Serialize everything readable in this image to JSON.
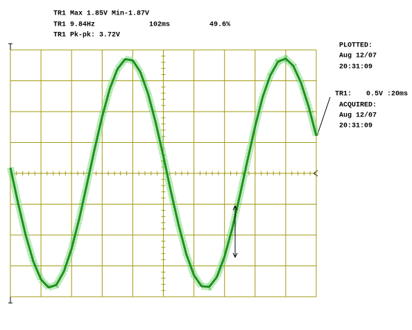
{
  "readouts": {
    "max_min": "TR1 Max 1.85V Min-1.87V",
    "freq": "TR1 9.84Hz",
    "period": "102ms",
    "duty": "49.6%",
    "pkpk": "TR1 Pk-pk: 3.72V"
  },
  "plotted": {
    "label": "PLOTTED:",
    "date": "Aug 12/07",
    "time": "20:31:09"
  },
  "trace": {
    "name": "TR1:",
    "scale": "0.5V :20ms"
  },
  "acquired": {
    "label": "ACQUIRED:",
    "date": "Aug 12/07",
    "time": "20:31:09"
  },
  "chart_data": {
    "type": "line",
    "x": [
      0,
      5,
      10,
      15,
      20,
      25,
      30,
      35,
      40,
      45,
      50,
      55,
      60,
      65,
      70,
      75,
      80,
      85,
      90,
      95,
      100,
      105,
      110,
      115,
      120,
      125,
      130,
      135,
      140,
      145,
      150,
      155,
      160,
      165,
      170,
      175,
      180,
      185,
      190,
      195,
      200
    ],
    "series": [
      {
        "color": "#1f8f1f",
        "values": [
          0.09,
          -0.48,
          -1.0,
          -1.43,
          -1.72,
          -1.85,
          -1.81,
          -1.59,
          -1.22,
          -0.74,
          -0.18,
          0.39,
          0.92,
          1.37,
          1.69,
          1.85,
          1.83,
          1.64,
          1.29,
          0.82,
          0.28,
          -0.3,
          -0.84,
          -1.31,
          -1.65,
          -1.83,
          -1.84,
          -1.68,
          -1.35,
          -0.9,
          -0.36,
          0.21,
          0.76,
          1.24,
          1.59,
          1.81,
          1.86,
          1.74,
          1.47,
          1.08,
          0.61
        ]
      }
    ],
    "xlim": [
      0,
      200
    ],
    "ylim": [
      -2,
      2
    ],
    "xticks": [
      0,
      20,
      40,
      60,
      80,
      100,
      120,
      140,
      160,
      180,
      200
    ],
    "yticks": [
      -2,
      -1.5,
      -1,
      -0.5,
      0,
      0.5,
      1,
      1.5,
      2
    ],
    "grid": true,
    "grid_color": "#a09a10"
  }
}
